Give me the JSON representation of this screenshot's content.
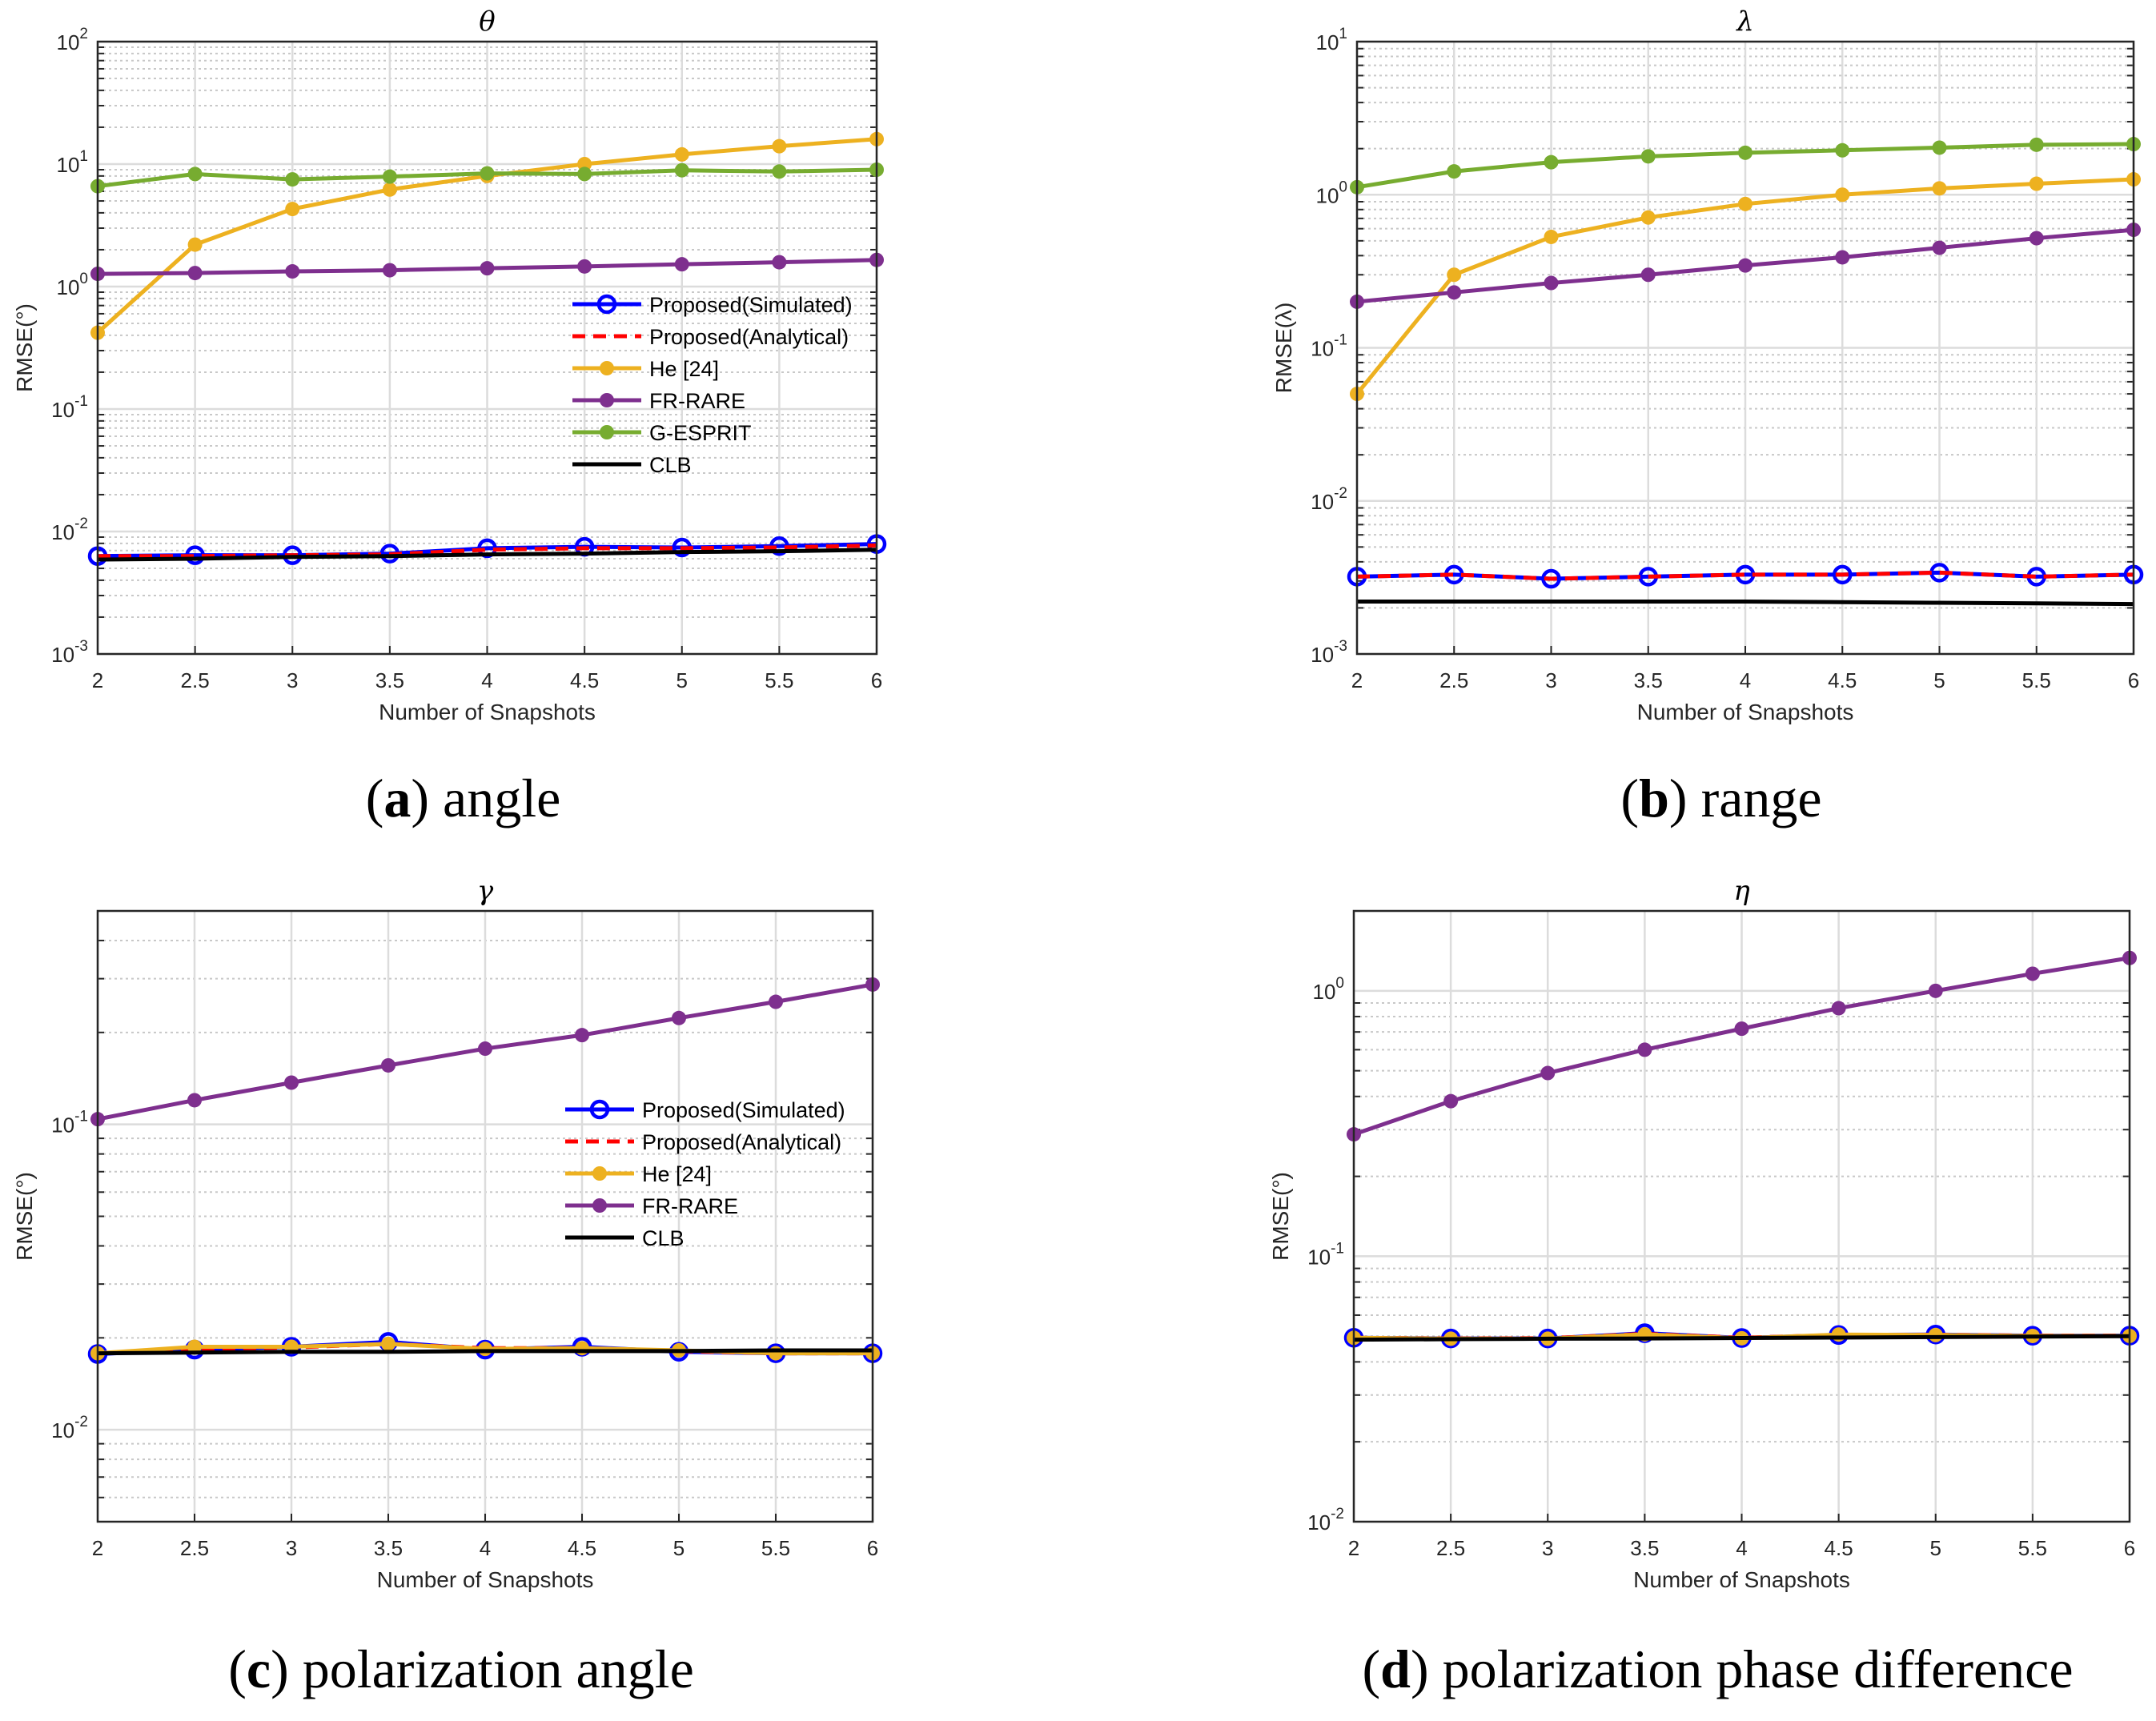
{
  "chart_data": [
    {
      "type": "line",
      "title": "θ",
      "xlabel": "Number of Snapshots",
      "ylabel": "RMSE(°)",
      "yscale": "log",
      "ylim": [
        0.001,
        100
      ],
      "xlim": [
        2,
        6
      ],
      "grid": true,
      "caption": {
        "letter": "a",
        "text": "angle"
      },
      "legend": "middle-right",
      "x": [
        2,
        2.5,
        3,
        3.5,
        4,
        4.5,
        5,
        5.5,
        6
      ],
      "xticks": [
        "2",
        "2.5",
        "3",
        "3.5",
        "4",
        "4.5",
        "5",
        "5.5",
        "6"
      ],
      "yticks": [
        {
          "base": "10",
          "exp": "-3"
        },
        {
          "base": "10",
          "exp": "-2"
        },
        {
          "base": "10",
          "exp": "-1"
        },
        {
          "base": "10",
          "exp": "0"
        },
        {
          "base": "10",
          "exp": "1"
        },
        {
          "base": "10",
          "exp": "2"
        }
      ],
      "series": [
        {
          "name": "Proposed(Simulated)",
          "color": "#0000ff",
          "style": "solid",
          "marker": "open-circle",
          "values": [
            0.0063,
            0.0064,
            0.0064,
            0.0066,
            0.0073,
            0.0075,
            0.0074,
            0.0076,
            0.0079
          ]
        },
        {
          "name": "Proposed(Analytical)",
          "color": "#ff0000",
          "style": "dashed",
          "marker": "none",
          "values": [
            0.0063,
            0.0063,
            0.0064,
            0.0065,
            0.0071,
            0.0073,
            0.0073,
            0.0074,
            0.0077
          ]
        },
        {
          "name": "He [24]",
          "color": "#edb120",
          "style": "solid",
          "marker": "filled",
          "values": [
            0.42,
            2.2,
            4.3,
            6.2,
            8.0,
            10,
            12,
            14,
            16
          ]
        },
        {
          "name": "FR-RARE",
          "color": "#7e2f8e",
          "style": "solid",
          "marker": "filled",
          "values": [
            1.27,
            1.29,
            1.33,
            1.36,
            1.41,
            1.46,
            1.52,
            1.58,
            1.65
          ]
        },
        {
          "name": "G-ESPRIT",
          "color": "#77ac30",
          "style": "solid",
          "marker": "filled",
          "values": [
            6.6,
            8.3,
            7.5,
            7.9,
            8.4,
            8.3,
            8.9,
            8.7,
            9.0
          ]
        },
        {
          "name": "CLB",
          "color": "#000000",
          "style": "solid",
          "marker": "none",
          "values": [
            0.0059,
            0.006,
            0.0062,
            0.0063,
            0.0065,
            0.0066,
            0.0068,
            0.0069,
            0.0071
          ]
        }
      ]
    },
    {
      "type": "line",
      "title": "λ",
      "xlabel": "Number of Snapshots",
      "ylabel": "RMSE(λ)",
      "yscale": "log",
      "ylim": [
        0.001,
        10
      ],
      "xlim": [
        2,
        6
      ],
      "grid": true,
      "caption": {
        "letter": "b",
        "text": "range"
      },
      "legend": null,
      "x": [
        2,
        2.5,
        3,
        3.5,
        4,
        4.5,
        5,
        5.5,
        6
      ],
      "xticks": [
        "2",
        "2.5",
        "3",
        "3.5",
        "4",
        "4.5",
        "5",
        "5.5",
        "6"
      ],
      "yticks": [
        {
          "base": "10",
          "exp": "-3"
        },
        {
          "base": "10",
          "exp": "-2"
        },
        {
          "base": "10",
          "exp": "-1"
        },
        {
          "base": "10",
          "exp": "0"
        },
        {
          "base": "10",
          "exp": "1"
        }
      ],
      "series": [
        {
          "name": "Proposed(Simulated)",
          "color": "#0000ff",
          "style": "solid",
          "marker": "open-circle",
          "values": [
            0.0032,
            0.0033,
            0.0031,
            0.0032,
            0.0033,
            0.0033,
            0.0034,
            0.0032,
            0.0033
          ]
        },
        {
          "name": "Proposed(Analytical)",
          "color": "#ff0000",
          "style": "dashed",
          "marker": "none",
          "values": [
            0.0032,
            0.0033,
            0.0031,
            0.0032,
            0.0033,
            0.0033,
            0.0034,
            0.0032,
            0.0033
          ]
        },
        {
          "name": "He [24]",
          "color": "#edb120",
          "style": "solid",
          "marker": "filled",
          "values": [
            0.05,
            0.3,
            0.53,
            0.71,
            0.87,
            1.0,
            1.1,
            1.18,
            1.26
          ]
        },
        {
          "name": "FR-RARE",
          "color": "#7e2f8e",
          "style": "solid",
          "marker": "filled",
          "values": [
            0.2,
            0.23,
            0.265,
            0.3,
            0.345,
            0.39,
            0.45,
            0.52,
            0.59
          ]
        },
        {
          "name": "G-ESPRIT",
          "color": "#77ac30",
          "style": "solid",
          "marker": "filled",
          "values": [
            1.12,
            1.42,
            1.63,
            1.78,
            1.88,
            1.95,
            2.03,
            2.12,
            2.14
          ]
        },
        {
          "name": "CLB",
          "color": "#000000",
          "style": "solid",
          "marker": "none",
          "values": [
            0.0022,
            0.0022,
            0.0022,
            0.0022,
            0.0022,
            0.00218,
            0.00216,
            0.00214,
            0.00212
          ]
        }
      ]
    },
    {
      "type": "line",
      "title": "γ",
      "xlabel": "Number of Snapshots",
      "ylabel": "RMSE(°)",
      "yscale": "log",
      "ylim": [
        0.005,
        0.5
      ],
      "xlim": [
        2,
        6
      ],
      "grid": true,
      "caption": {
        "letter": "c",
        "text": "polarization angle"
      },
      "legend": "middle-right",
      "x": [
        2,
        2.5,
        3,
        3.5,
        4,
        4.5,
        5,
        5.5,
        6
      ],
      "xticks": [
        "2",
        "2.5",
        "3",
        "3.5",
        "4",
        "4.5",
        "5",
        "5.5",
        "6"
      ],
      "yticks": [
        {
          "base": "10",
          "exp": "-2"
        },
        {
          "base": "10",
          "exp": "-1"
        }
      ],
      "series": [
        {
          "name": "Proposed(Simulated)",
          "color": "#0000ff",
          "style": "solid",
          "marker": "open-circle",
          "values": [
            0.0177,
            0.0183,
            0.0187,
            0.0194,
            0.0183,
            0.0187,
            0.018,
            0.0178,
            0.0178
          ]
        },
        {
          "name": "Proposed(Analytical)",
          "color": "#ff0000",
          "style": "dashed",
          "marker": "none",
          "values": [
            0.0178,
            0.0184,
            0.0186,
            0.0191,
            0.0185,
            0.0185,
            0.0181,
            0.0178,
            0.0178
          ]
        },
        {
          "name": "He [24]",
          "color": "#edb120",
          "style": "solid",
          "marker": "filled",
          "values": [
            0.0178,
            0.0187,
            0.0187,
            0.0191,
            0.0184,
            0.0185,
            0.0182,
            0.0178,
            0.0178
          ]
        },
        {
          "name": "FR-RARE",
          "color": "#7e2f8e",
          "style": "solid",
          "marker": "filled",
          "values": [
            0.104,
            0.12,
            0.137,
            0.156,
            0.177,
            0.196,
            0.223,
            0.252,
            0.287
          ]
        },
        {
          "name": "CLB",
          "color": "#000000",
          "style": "solid",
          "marker": "none",
          "values": [
            0.0178,
            0.0179,
            0.018,
            0.018,
            0.0181,
            0.0181,
            0.0181,
            0.0182,
            0.0182
          ]
        }
      ]
    },
    {
      "type": "line",
      "title": "η",
      "xlabel": "Number of Snapshots",
      "ylabel": "RMSE(°)",
      "yscale": "log",
      "ylim": [
        0.01,
        2
      ],
      "xlim": [
        2,
        6
      ],
      "grid": true,
      "caption": {
        "letter": "d",
        "text": "polarization phase difference"
      },
      "legend": null,
      "x": [
        2,
        2.5,
        3,
        3.5,
        4,
        4.5,
        5,
        5.5,
        6
      ],
      "xticks": [
        "2",
        "2.5",
        "3",
        "3.5",
        "4",
        "4.5",
        "5",
        "5.5",
        "6"
      ],
      "yticks": [
        {
          "base": "10",
          "exp": "-2"
        },
        {
          "base": "10",
          "exp": "-1"
        },
        {
          "base": "10",
          "exp": "0"
        }
      ],
      "series": [
        {
          "name": "Proposed(Simulated)",
          "color": "#0000ff",
          "style": "solid",
          "marker": "open-circle",
          "values": [
            0.0493,
            0.049,
            0.049,
            0.0513,
            0.0492,
            0.0505,
            0.0507,
            0.0502,
            0.0502
          ]
        },
        {
          "name": "Proposed(Analytical)",
          "color": "#ff0000",
          "style": "dashed",
          "marker": "none",
          "values": [
            0.0493,
            0.049,
            0.0491,
            0.051,
            0.0493,
            0.0505,
            0.0506,
            0.0502,
            0.0502
          ]
        },
        {
          "name": "He [24]",
          "color": "#edb120",
          "style": "solid",
          "marker": "filled",
          "values": [
            0.0493,
            0.0489,
            0.0489,
            0.0508,
            0.0491,
            0.0507,
            0.0505,
            0.0501,
            0.0501
          ]
        },
        {
          "name": "FR-RARE",
          "color": "#7e2f8e",
          "style": "solid",
          "marker": "filled",
          "values": [
            0.288,
            0.384,
            0.49,
            0.6,
            0.72,
            0.86,
            1.0,
            1.16,
            1.33
          ]
        },
        {
          "name": "CLB",
          "color": "#000000",
          "style": "solid",
          "marker": "none",
          "values": [
            0.0485,
            0.0487,
            0.0489,
            0.049,
            0.0492,
            0.0494,
            0.0496,
            0.0498,
            0.05
          ]
        }
      ]
    }
  ]
}
